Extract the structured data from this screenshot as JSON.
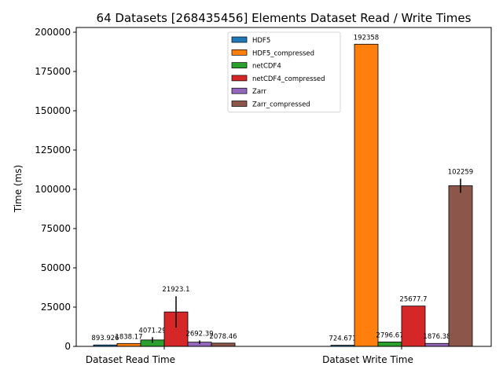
{
  "chart_data": {
    "type": "bar",
    "title": "64 Datasets [268435456] Elements Dataset Read / Write Times",
    "xlabel": "",
    "ylabel": "Time (ms)",
    "categories": [
      "Dataset Read Time",
      "Dataset Write Time"
    ],
    "ylim": [
      0,
      203000
    ],
    "yticks": [
      0,
      25000,
      50000,
      75000,
      100000,
      125000,
      150000,
      175000,
      200000
    ],
    "grid": false,
    "legend_position": "top-center",
    "series": [
      {
        "name": "HDF5",
        "color": "#1f77b4",
        "values": [
          893.926,
          724.671
        ],
        "errors": [
          0,
          0
        ],
        "labels": [
          "893.926",
          "724.671"
        ]
      },
      {
        "name": "HDF5_compressed",
        "color": "#ff7f0e",
        "values": [
          1838.17,
          192358
        ],
        "errors": [
          0,
          0
        ],
        "labels": [
          "1838.17",
          "192358"
        ]
      },
      {
        "name": "netCDF4",
        "color": "#2ca02c",
        "values": [
          4071.29,
          2796.67
        ],
        "errors": [
          1800,
          0
        ],
        "labels": [
          "4071.29",
          "2796.67"
        ]
      },
      {
        "name": "netCDF4_compressed",
        "color": "#d62728",
        "values": [
          21923.1,
          25677.7
        ],
        "errors": [
          10000,
          0
        ],
        "labels": [
          "21923.1",
          "25677.7"
        ]
      },
      {
        "name": "Zarr",
        "color": "#9467bd",
        "values": [
          2692.39,
          1876.38
        ],
        "errors": [
          1100,
          0
        ],
        "labels": [
          "2692.39",
          "1876.38"
        ]
      },
      {
        "name": "Zarr_compressed",
        "color": "#8c564b",
        "values": [
          2078.46,
          102259
        ],
        "errors": [
          0,
          4500
        ],
        "labels": [
          "2078.46",
          "102259"
        ]
      }
    ]
  }
}
